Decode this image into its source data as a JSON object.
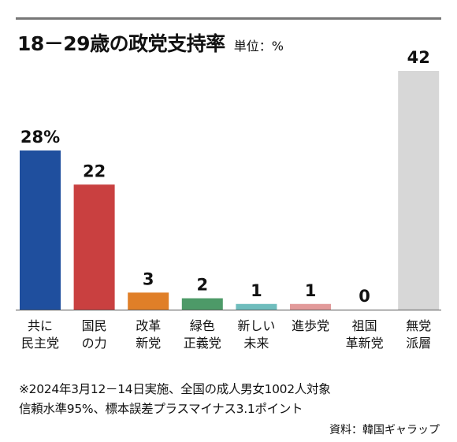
{
  "header": {
    "title": "18－29歳の政党支持率",
    "unit": "単位：%"
  },
  "chart_data": {
    "type": "bar",
    "categories": [
      [
        "共に",
        "民主党"
      ],
      [
        "国民",
        "の力"
      ],
      [
        "改革",
        "新党"
      ],
      [
        "緑色",
        "正義党"
      ],
      [
        "新しい",
        "未来"
      ],
      [
        "進歩党"
      ],
      [
        "祖国",
        "革新党"
      ],
      [
        "無党",
        "派層"
      ]
    ],
    "values": [
      28,
      22,
      3,
      2,
      1,
      1,
      0,
      42
    ],
    "value_labels": [
      "28%",
      "22",
      "3",
      "2",
      "1",
      "1",
      "0",
      "42"
    ],
    "colors": [
      "#1f4f9e",
      "#c94040",
      "#e07f28",
      "#4d9a68",
      "#6fbdbd",
      "#e29a9a",
      "#cccccc",
      "#d7d7d7"
    ],
    "title": "18－29歳の政党支持率",
    "xlabel": "",
    "ylabel": "",
    "ylim": [
      0,
      42
    ],
    "grid": false,
    "legend": "none"
  },
  "footer": {
    "note1": "※2024年3月12－14日実施、全国の成人男女1002人対象",
    "note2": "信頼水準95%、標本誤差プラスマイナス3.1ポイント",
    "source": "資料：韓国ギャラップ"
  }
}
